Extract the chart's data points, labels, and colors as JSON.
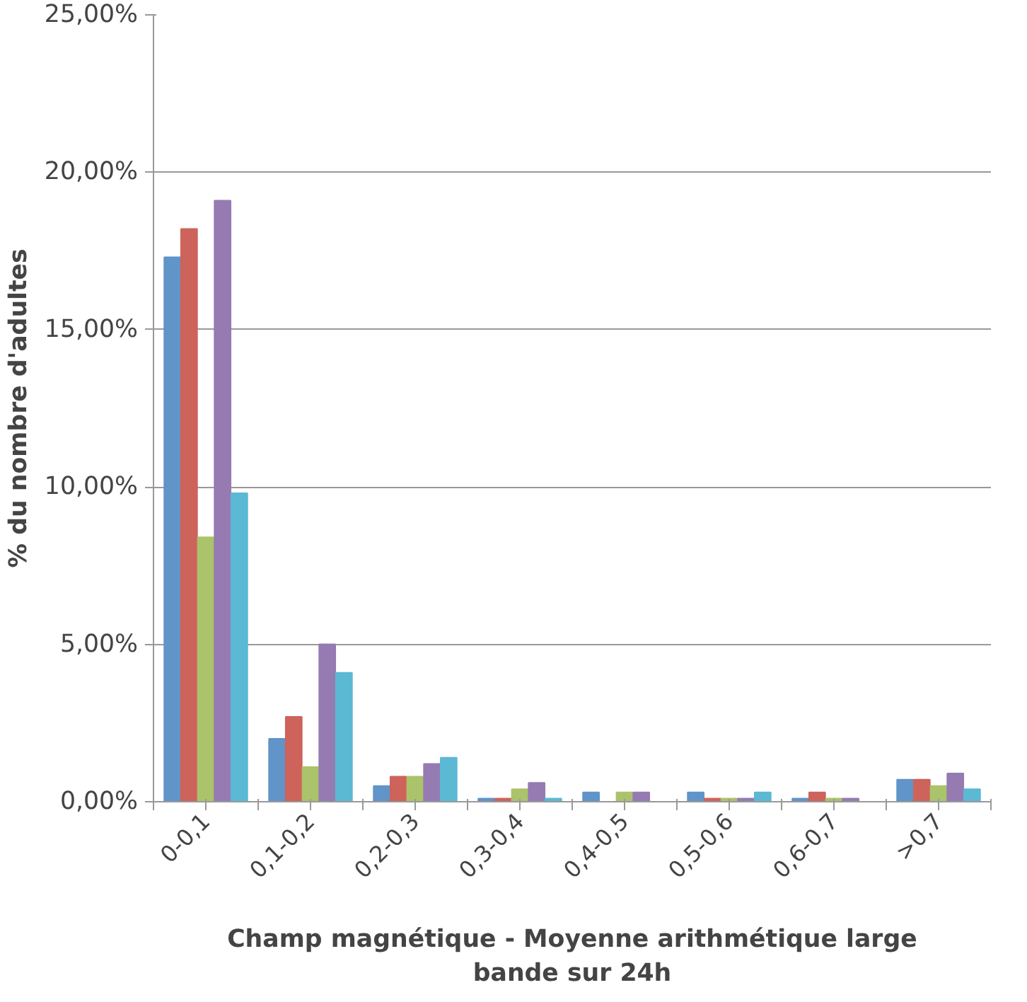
{
  "chart_data": {
    "type": "bar",
    "xlabel": "Champ magnétique - Moyenne arithmétique large bande sur 24h",
    "ylabel": "% du nombre d'adultes",
    "categories": [
      "0-0,1",
      "0,1-0,2",
      "0,2-0,3",
      "0,3-0,4",
      "0,4-0,5",
      "0,5-0,6",
      "0,6-0,7",
      ">0,7"
    ],
    "series": [
      {
        "color": "#6194c8",
        "values": [
          17.3,
          2.0,
          0.5,
          0.1,
          0.3,
          0.3,
          0.1,
          0.7
        ]
      },
      {
        "color": "#cd635b",
        "values": [
          18.2,
          2.7,
          0.8,
          0.1,
          0,
          0.1,
          0.3,
          0.7
        ]
      },
      {
        "color": "#abc36a",
        "values": [
          8.4,
          1.1,
          0.8,
          0.4,
          0.3,
          0.1,
          0.1,
          0.5
        ]
      },
      {
        "color": "#957bb2",
        "values": [
          19.1,
          5.0,
          1.2,
          0.6,
          0.3,
          0.1,
          0.1,
          0.9
        ]
      },
      {
        "color": "#5bb9d4",
        "values": [
          9.8,
          4.1,
          1.4,
          0.1,
          0,
          0.3,
          0,
          0.4
        ]
      }
    ],
    "ylim": [
      0,
      25
    ],
    "yticks": [
      {
        "value": 0,
        "label": "0,00%"
      },
      {
        "value": 5,
        "label": "5,00%"
      },
      {
        "value": 10,
        "label": "10,00%"
      },
      {
        "value": 15,
        "label": "15,00%"
      },
      {
        "value": 20,
        "label": "20,00%"
      },
      {
        "value": 25,
        "label": "25,00%"
      }
    ],
    "grid": "y"
  }
}
